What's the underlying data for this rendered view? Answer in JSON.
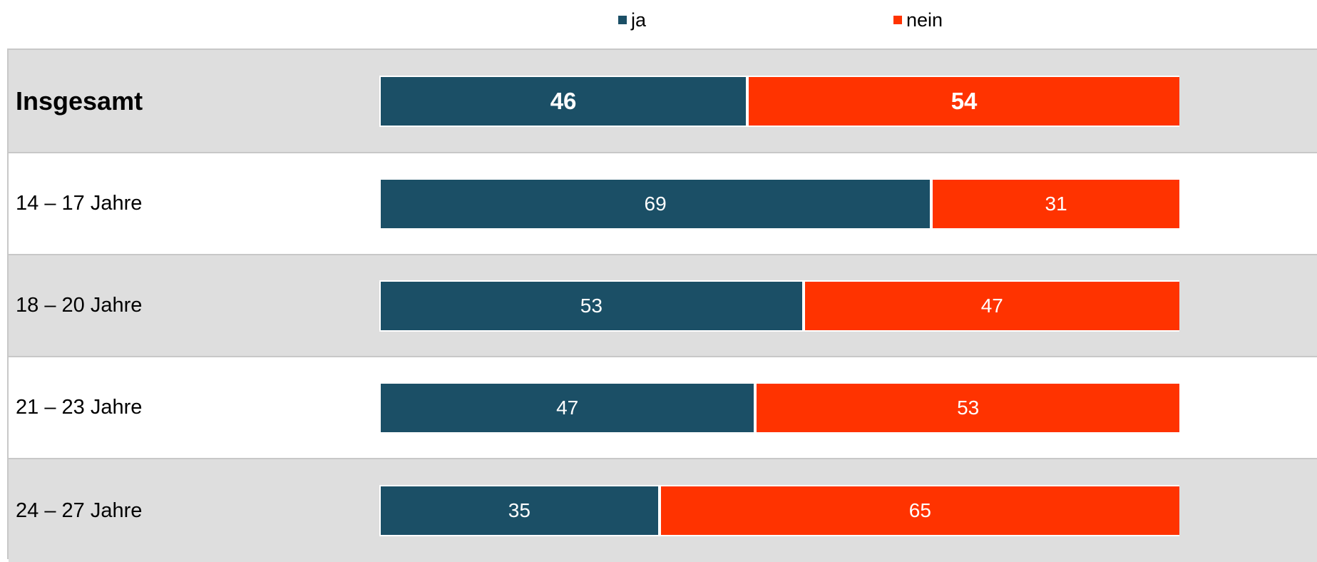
{
  "legend": {
    "ja_label": "ja",
    "nein_label": "nein"
  },
  "colors": {
    "ja": "#1b4f66",
    "nein": "#ff3300",
    "row_shaded": "#dedede",
    "row_plain": "#ffffff"
  },
  "chart_data": {
    "type": "bar",
    "orientation": "horizontal",
    "stacked": true,
    "categories": [
      "Insgesamt",
      "14 – 17 Jahre",
      "18 – 20 Jahre",
      "21 – 23 Jahre",
      "24 – 27 Jahre"
    ],
    "series": [
      {
        "name": "ja",
        "values": [
          46,
          69,
          53,
          47,
          35
        ]
      },
      {
        "name": "nein",
        "values": [
          54,
          31,
          47,
          53,
          65
        ]
      }
    ],
    "xlim": [
      0,
      100
    ],
    "legend_position": "top-center",
    "grid": false,
    "data_labels": true
  }
}
